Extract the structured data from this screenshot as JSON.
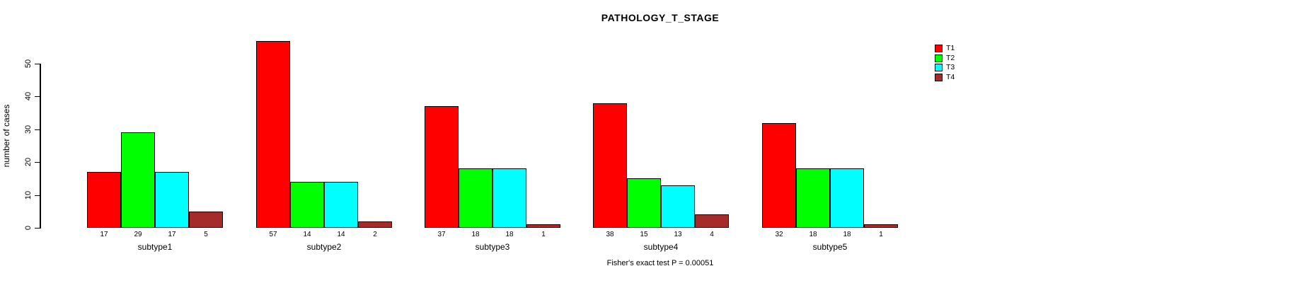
{
  "title": "PATHOLOGY_T_STAGE",
  "y_axis": {
    "label": "number of cases",
    "ticks": [
      0,
      10,
      20,
      30,
      40,
      50
    ]
  },
  "footer": "Fisher's exact test P = 0.00051",
  "legend": {
    "position": "right",
    "entries": [
      {
        "label": "T1",
        "color": "#FF0000"
      },
      {
        "label": "T2",
        "color": "#00FF00"
      },
      {
        "label": "T3",
        "color": "#00FFFF"
      },
      {
        "label": "T4",
        "color": "#A52A2A"
      }
    ]
  },
  "chart_data": {
    "type": "bar",
    "grouped": true,
    "title": "PATHOLOGY_T_STAGE",
    "xlabel": "",
    "ylabel": "number of cases",
    "ylim": [
      0,
      57
    ],
    "yticks": [
      0,
      10,
      20,
      30,
      40,
      50
    ],
    "grid": false,
    "legend_position": "right",
    "annotation": "Fisher's exact test P = 0.00051",
    "categories": [
      "subtype1",
      "subtype2",
      "subtype3",
      "subtype4",
      "subtype5"
    ],
    "series": [
      {
        "name": "T1",
        "color": "#FF0000",
        "values": [
          17,
          57,
          37,
          38,
          32
        ]
      },
      {
        "name": "T2",
        "color": "#00FF00",
        "values": [
          29,
          14,
          18,
          15,
          18
        ]
      },
      {
        "name": "T3",
        "color": "#00FFFF",
        "values": [
          17,
          14,
          18,
          13,
          18
        ]
      },
      {
        "name": "T4",
        "color": "#A52A2A",
        "values": [
          5,
          2,
          1,
          4,
          1
        ]
      }
    ]
  }
}
